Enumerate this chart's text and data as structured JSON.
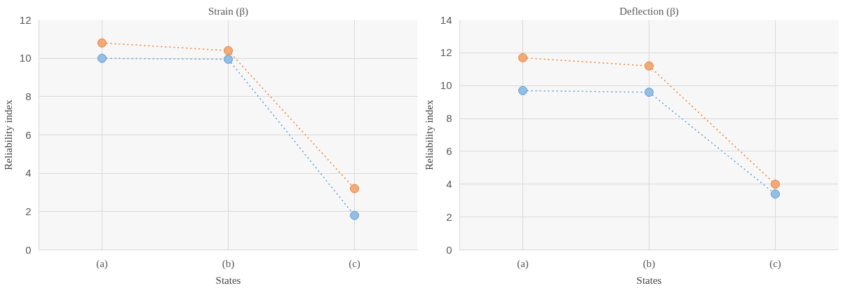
{
  "chart_data": [
    {
      "type": "line",
      "title": "Strain (β)",
      "xlabel": "States",
      "ylabel": "Reliability index",
      "categories": [
        "(a)",
        "(b)",
        "(c)"
      ],
      "ylim": [
        0,
        12
      ],
      "yticks": [
        0,
        2,
        4,
        6,
        8,
        10,
        12
      ],
      "grid": true,
      "marker": "circle",
      "line_style": "dotted",
      "series": [
        {
          "color": "#5b9bd5",
          "values": [
            10.0,
            9.95,
            1.8
          ]
        },
        {
          "color": "#ed7d31",
          "values": [
            10.8,
            10.4,
            3.2
          ]
        }
      ]
    },
    {
      "type": "line",
      "title": "Deflection (β)",
      "xlabel": "States",
      "ylabel": "Reliability index",
      "categories": [
        "(a)",
        "(b)",
        "(c)"
      ],
      "ylim": [
        0,
        14
      ],
      "yticks": [
        0,
        2,
        4,
        6,
        8,
        10,
        12,
        14
      ],
      "grid": true,
      "marker": "circle",
      "line_style": "dotted",
      "series": [
        {
          "color": "#5b9bd5",
          "values": [
            9.7,
            9.6,
            3.4
          ]
        },
        {
          "color": "#ed7d31",
          "values": [
            11.7,
            11.2,
            4.0
          ]
        }
      ]
    }
  ]
}
